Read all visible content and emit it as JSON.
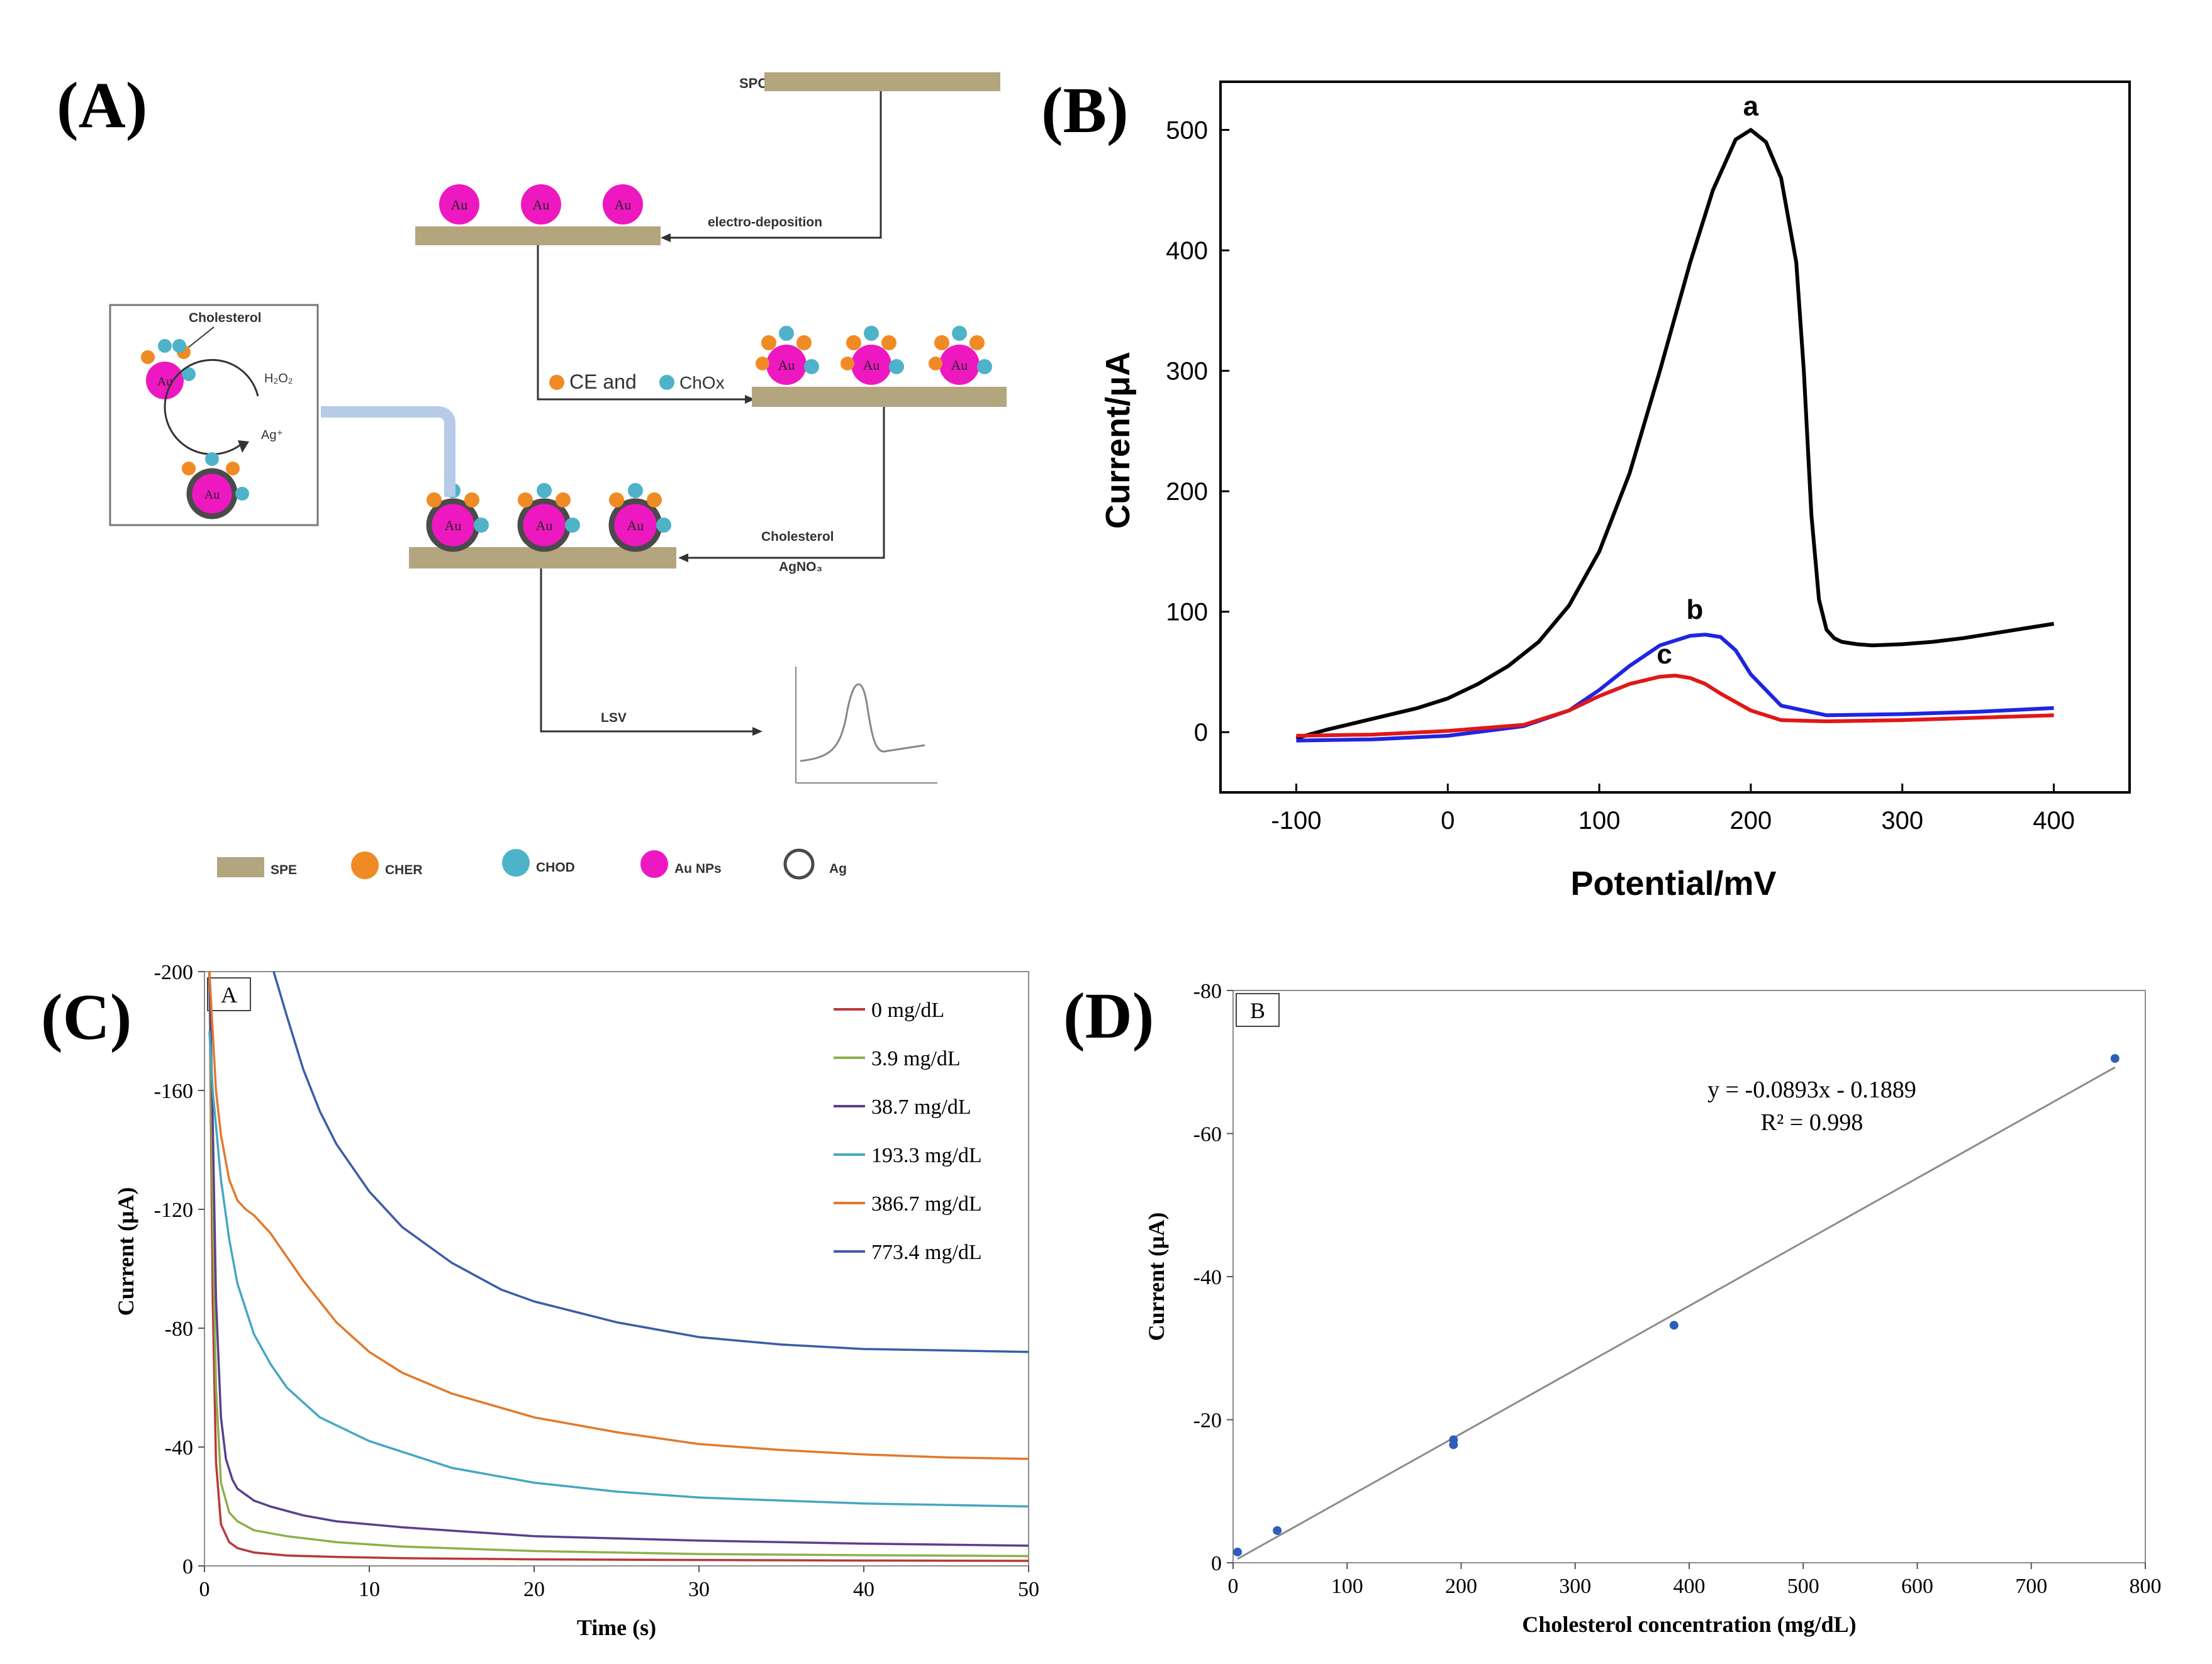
{
  "panel_labels": {
    "a": "(A)",
    "b": "(B)",
    "c": "(C)",
    "d": "(D)"
  },
  "colors": {
    "spe": "#b3a57e",
    "cher": "#f08a24",
    "chod": "#4eb3c8",
    "aunp": "#ee18c0",
    "ag": "#4a4a4a",
    "connector": "#b5cbe8"
  },
  "scheme": {
    "spce_label": "SPCE",
    "au_label": "Au",
    "electrodeposition_label": "electro-deposition",
    "ce_and_label": "CE and",
    "chox_label": "ChOx",
    "cholesterol_step_label": "Cholesterol",
    "agno3_label": "AgNO₃",
    "lsv_label": "LSV",
    "inset": {
      "cholesterol_label": "Cholesterol",
      "h2o2_label": "H₂O₂",
      "ag_label": "Ag⁺"
    },
    "legend": [
      {
        "key": "spe",
        "label": "SPE",
        "icon": "spe-bar-icon"
      },
      {
        "key": "cher",
        "label": "CHER",
        "icon": "cher-dot-icon"
      },
      {
        "key": "chod",
        "label": "CHOD",
        "icon": "chod-dot-icon"
      },
      {
        "key": "aunp",
        "label": "Au NPs",
        "icon": "au-np-dot-icon"
      },
      {
        "key": "ag",
        "label": "Ag",
        "icon": "ag-ring-icon"
      }
    ]
  },
  "chart_data": [
    {
      "panel": "B",
      "type": "line",
      "title": "",
      "xlabel": "Potential/mV",
      "ylabel": "Current/μA",
      "xlim": [
        -150,
        450
      ],
      "ylim": [
        -50,
        540
      ],
      "xticks": [
        -100,
        0,
        100,
        200,
        300,
        400
      ],
      "yticks": [
        0,
        100,
        200,
        300,
        400,
        500
      ],
      "series": [
        {
          "name": "a",
          "color": "#000000",
          "label_at": [
            200,
            512
          ],
          "x": [
            -100,
            -80,
            -60,
            -40,
            -20,
            0,
            20,
            40,
            60,
            80,
            100,
            120,
            140,
            160,
            175,
            190,
            200,
            210,
            220,
            230,
            235,
            240,
            245,
            250,
            255,
            260,
            270,
            280,
            300,
            320,
            340,
            360,
            380,
            400
          ],
          "y": [
            -5,
            2,
            8,
            14,
            20,
            28,
            40,
            55,
            75,
            105,
            150,
            215,
            300,
            390,
            450,
            492,
            500,
            490,
            460,
            390,
            300,
            180,
            110,
            85,
            78,
            75,
            73,
            72,
            73,
            75,
            78,
            82,
            86,
            90
          ]
        },
        {
          "name": "b",
          "color": "#1f25e0",
          "label_at": [
            163,
            94
          ],
          "x": [
            -100,
            -50,
            0,
            50,
            80,
            100,
            120,
            140,
            160,
            170,
            180,
            190,
            200,
            220,
            250,
            300,
            350,
            400
          ],
          "y": [
            -7,
            -6,
            -3,
            5,
            18,
            35,
            55,
            72,
            80,
            81,
            79,
            68,
            48,
            22,
            14,
            15,
            17,
            20
          ]
        },
        {
          "name": "c",
          "color": "#e01818",
          "label_at": [
            143,
            57
          ],
          "x": [
            -100,
            -50,
            0,
            50,
            80,
            100,
            120,
            140,
            150,
            160,
            170,
            180,
            200,
            220,
            250,
            300,
            350,
            400
          ],
          "y": [
            -3,
            -2,
            1,
            6,
            18,
            30,
            40,
            46,
            47,
            45,
            40,
            32,
            18,
            10,
            9,
            10,
            12,
            14
          ]
        }
      ]
    },
    {
      "panel": "C",
      "type": "line",
      "title": "",
      "inset_label": "A",
      "xlabel": "Time (s)",
      "ylabel": "Current (μA)",
      "xlim": [
        0,
        50
      ],
      "ylim": [
        0,
        -200
      ],
      "xticks": [
        0,
        10,
        20,
        30,
        40,
        50
      ],
      "yticks": [
        0,
        -40,
        -80,
        -120,
        -160,
        -200
      ],
      "series": [
        {
          "name": "0 mg/dL",
          "color": "#b8383a",
          "x": [
            0.3,
            0.5,
            0.7,
            1,
            1.5,
            2,
            3,
            5,
            8,
            12,
            20,
            30,
            40,
            50
          ],
          "y": [
            -200,
            -90,
            -35,
            -14,
            -8,
            -6,
            -4.5,
            -3.5,
            -3,
            -2.6,
            -2.2,
            -2,
            -1.8,
            -1.7
          ]
        },
        {
          "name": "3.9 mg/dL",
          "color": "#8db04a",
          "x": [
            0.3,
            0.5,
            0.7,
            1,
            1.5,
            2,
            3,
            5,
            8,
            12,
            20,
            30,
            40,
            50
          ],
          "y": [
            -200,
            -120,
            -60,
            -28,
            -18,
            -15,
            -12,
            -10,
            -8,
            -6.5,
            -5,
            -4,
            -3.6,
            -3.3
          ]
        },
        {
          "name": "38.7 mg/dL",
          "color": "#5a3f8e",
          "x": [
            0.3,
            0.5,
            0.7,
            1,
            1.3,
            1.7,
            2,
            3,
            4,
            6,
            8,
            12,
            20,
            30,
            40,
            50
          ],
          "y": [
            -200,
            -150,
            -90,
            -50,
            -36,
            -29,
            -26,
            -22,
            -20,
            -17,
            -15,
            -13,
            -10,
            -8.5,
            -7.5,
            -6.8
          ]
        },
        {
          "name": "193.3 mg/dL",
          "color": "#45a7c2",
          "x": [
            0.3,
            0.5,
            1,
            1.5,
            2,
            3,
            4,
            5,
            7,
            10,
            15,
            20,
            25,
            30,
            40,
            50
          ],
          "y": [
            -180,
            -160,
            -130,
            -110,
            -95,
            -78,
            -68,
            -60,
            -50,
            -42,
            -33,
            -28,
            -25,
            -23,
            -21,
            -20
          ]
        },
        {
          "name": "386.7 mg/dL",
          "color": "#e07a2c",
          "x": [
            0.3,
            0.5,
            0.7,
            1,
            1.5,
            2,
            2.5,
            3,
            3.5,
            4,
            4.5,
            5,
            6,
            7,
            8,
            10,
            12,
            15,
            20,
            25,
            30,
            35,
            40,
            45,
            50
          ],
          "y": [
            -200,
            -180,
            -160,
            -145,
            -130,
            -123,
            -120,
            -118,
            -115,
            -112,
            -108,
            -104,
            -96,
            -89,
            -82,
            -72,
            -65,
            -58,
            -50,
            -45,
            -41,
            -39,
            -37.5,
            -36.5,
            -36
          ]
        },
        {
          "name": "773.4 mg/dL",
          "color": "#3a5da7",
          "x": [
            4.2,
            5,
            6,
            7,
            8,
            10,
            12,
            15,
            18,
            20,
            25,
            30,
            35,
            40,
            45,
            50
          ],
          "y": [
            -200,
            -185,
            -167,
            -153,
            -142,
            -126,
            -114,
            -102,
            -93,
            -89,
            -82,
            -77,
            -74.5,
            -73,
            -72.5,
            -72
          ]
        }
      ]
    },
    {
      "panel": "D",
      "type": "scatter",
      "title": "",
      "inset_label": "B",
      "xlabel": "Cholesterol concentration (mg/dL)",
      "ylabel": "Current (μA)",
      "xlim": [
        0,
        800
      ],
      "ylim": [
        0,
        -80
      ],
      "xticks": [
        0,
        100,
        200,
        300,
        400,
        500,
        600,
        700,
        800
      ],
      "yticks": [
        0,
        -20,
        -40,
        -60,
        -80
      ],
      "points": {
        "x": [
          3.9,
          38.7,
          193.3,
          193.3,
          386.7,
          773.4
        ],
        "y": [
          -1.5,
          -4.5,
          -16.5,
          -17.2,
          -33.2,
          -70.5
        ]
      },
      "point_color": "#2e5fb8",
      "trendline": {
        "slope": -0.0893,
        "intercept": -0.1889,
        "x_from": 3.9,
        "x_to": 773.4,
        "color": "#8c8c8c"
      },
      "equation_text": "y = -0.0893x - 0.1889",
      "r2_text": "R² = 0.998"
    }
  ]
}
